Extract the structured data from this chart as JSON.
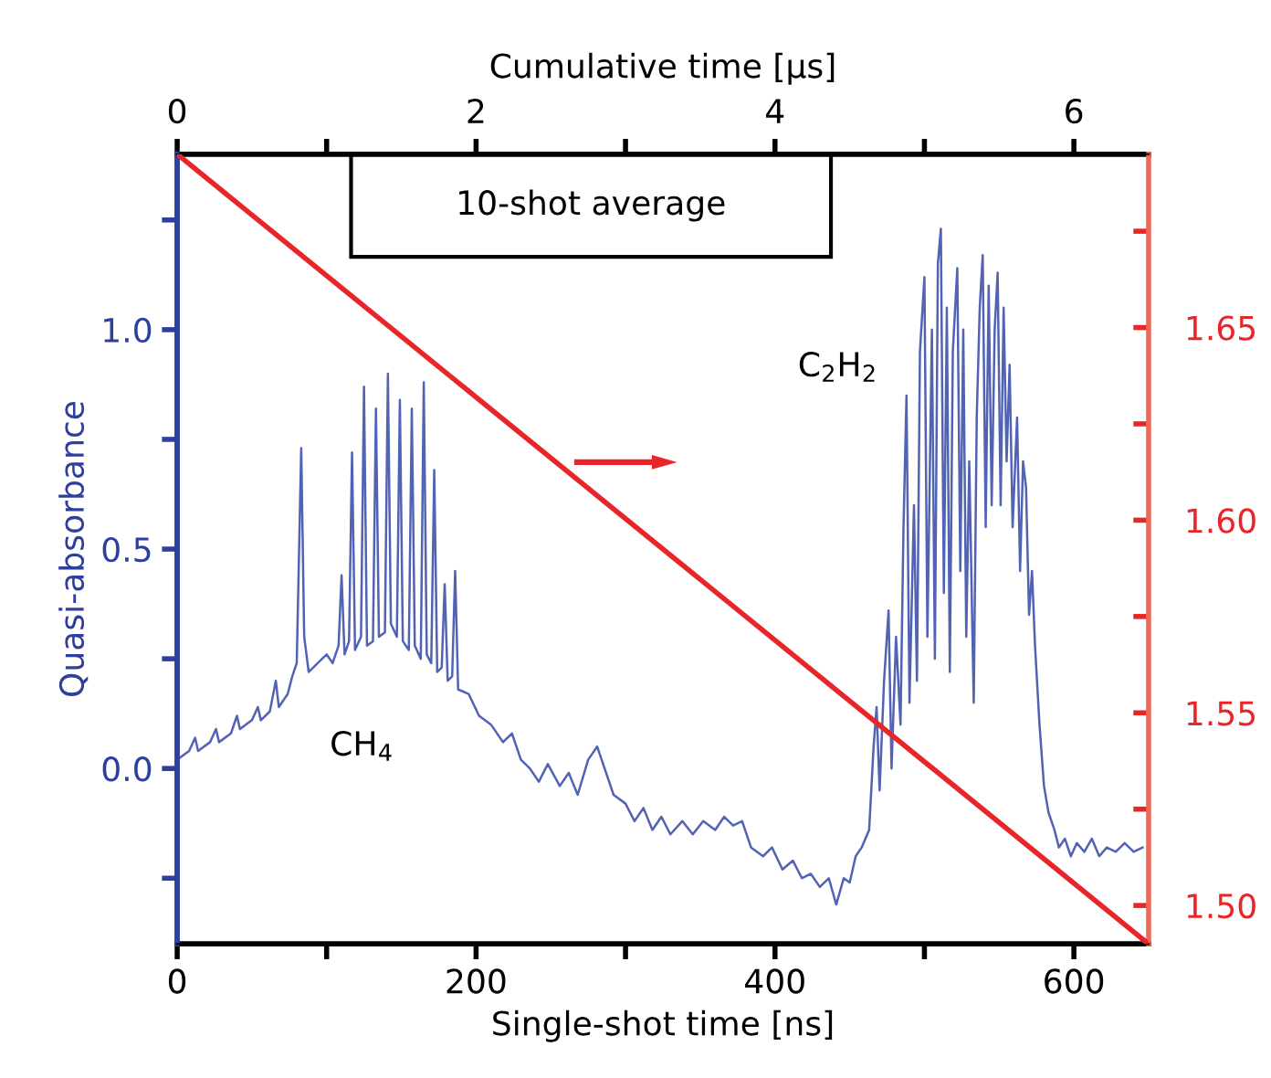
{
  "chart_data": {
    "type": "line",
    "xlabel": "Single-shot time [ns]",
    "x2label": "Cumulative time [µs]",
    "ylabel": "Quasi-absorbance",
    "xlim": [
      0,
      650
    ],
    "xticks": [
      0,
      {
        "value": 100,
        "label": null
      },
      200,
      {
        "value": 300,
        "label": null
      },
      400,
      {
        "value": 500,
        "label": null
      },
      600
    ],
    "x2lim": [
      0,
      6.5
    ],
    "x2ticks": [
      0,
      {
        "value": 1,
        "label": null
      },
      2,
      {
        "value": 3,
        "label": null
      },
      4,
      {
        "value": 5,
        "label": null
      },
      6
    ],
    "ylim": [
      -0.4,
      1.4
    ],
    "yticks": [
      {
        "value": -0.25,
        "label": null
      },
      {
        "value": 0,
        "label": "0.0"
      },
      {
        "value": 0.25,
        "label": null
      },
      {
        "value": 0.5,
        "label": "0.5"
      },
      {
        "value": 0.75,
        "label": null
      },
      {
        "value": 1.0,
        "label": "1.0"
      },
      {
        "value": 1.25,
        "label": null
      }
    ],
    "y2lim": [
      1.49,
      1.695
    ],
    "y2ticks": [
      {
        "value": 1.5,
        "label": "1.50"
      },
      {
        "value": 1.525,
        "label": null
      },
      {
        "value": 1.55,
        "label": "1.55"
      },
      {
        "value": 1.575,
        "label": null
      },
      {
        "value": 1.6,
        "label": "1.60"
      },
      {
        "value": 1.625,
        "label": null
      },
      {
        "value": 1.65,
        "label": "1.65"
      },
      {
        "value": 1.675,
        "label": null
      }
    ],
    "grid": false,
    "marker": "none",
    "line_style": "solid",
    "annotations": [
      "10-shot average",
      "CH$_{4}$",
      "C$_{2}$H$_{2}$"
    ],
    "series": [
      {
        "color": "#5263b3",
        "axis": "y",
        "x": [
          0,
          8,
          12,
          14,
          22,
          26,
          28,
          36,
          40,
          42,
          50,
          54,
          56,
          62,
          66,
          68,
          74,
          77,
          80,
          83,
          85,
          88,
          94,
          100,
          104,
          108,
          110,
          112,
          115,
          117,
          119,
          123,
          125,
          127,
          131,
          133,
          135,
          139,
          141,
          143,
          147,
          149,
          151,
          155,
          157,
          159,
          163,
          165,
          167,
          170,
          172,
          174,
          177,
          179,
          181,
          184,
          186,
          188,
          195,
          202,
          210,
          218,
          224,
          230,
          236,
          242,
          248,
          256,
          262,
          268,
          275,
          281,
          286,
          292,
          300,
          306,
          312,
          318,
          324,
          330,
          338,
          345,
          352,
          360,
          366,
          372,
          378,
          384,
          392,
          398,
          405,
          412,
          418,
          424,
          430,
          436,
          441,
          446,
          450,
          454,
          458,
          463,
          466,
          468,
          470,
          473,
          476,
          478,
          481,
          484,
          486,
          488,
          490,
          493,
          495,
          497,
          500,
          502,
          505,
          507,
          509,
          511,
          513,
          515,
          517,
          519,
          522,
          524,
          526,
          528,
          530,
          533,
          535,
          537,
          539,
          541,
          543,
          545,
          547,
          549,
          551,
          553,
          555,
          557,
          559,
          562,
          564,
          566,
          568,
          570,
          572,
          574,
          577,
          580,
          583,
          587,
          590,
          594,
          598,
          602,
          607,
          612,
          617,
          622,
          628,
          634,
          640,
          646
        ],
        "values": [
          0.02,
          0.04,
          0.07,
          0.04,
          0.06,
          0.09,
          0.06,
          0.08,
          0.12,
          0.09,
          0.11,
          0.14,
          0.11,
          0.13,
          0.2,
          0.14,
          0.17,
          0.21,
          0.24,
          0.73,
          0.3,
          0.22,
          0.24,
          0.26,
          0.24,
          0.28,
          0.44,
          0.26,
          0.29,
          0.72,
          0.27,
          0.3,
          0.87,
          0.28,
          0.29,
          0.82,
          0.3,
          0.31,
          0.9,
          0.33,
          0.3,
          0.84,
          0.29,
          0.27,
          0.82,
          0.28,
          0.25,
          0.88,
          0.26,
          0.24,
          0.68,
          0.22,
          0.23,
          0.42,
          0.2,
          0.21,
          0.45,
          0.18,
          0.17,
          0.12,
          0.1,
          0.06,
          0.08,
          0.02,
          0.0,
          -0.03,
          0.01,
          -0.04,
          -0.01,
          -0.06,
          0.02,
          0.05,
          0.0,
          -0.06,
          -0.08,
          -0.12,
          -0.09,
          -0.14,
          -0.11,
          -0.15,
          -0.12,
          -0.15,
          -0.12,
          -0.14,
          -0.11,
          -0.13,
          -0.12,
          -0.18,
          -0.2,
          -0.18,
          -0.23,
          -0.21,
          -0.25,
          -0.24,
          -0.27,
          -0.25,
          -0.31,
          -0.25,
          -0.26,
          -0.2,
          -0.18,
          -0.14,
          0.05,
          0.14,
          -0.05,
          0.2,
          0.36,
          0.0,
          0.3,
          0.1,
          0.55,
          0.85,
          0.15,
          0.6,
          0.2,
          0.95,
          1.12,
          0.3,
          1.0,
          0.25,
          1.15,
          1.23,
          0.4,
          1.05,
          0.22,
          0.95,
          1.14,
          0.45,
          1.0,
          0.3,
          0.7,
          0.15,
          0.8,
          1.05,
          1.17,
          0.55,
          1.1,
          0.6,
          1.0,
          1.13,
          0.6,
          1.05,
          0.7,
          0.92,
          0.55,
          0.8,
          0.45,
          0.7,
          0.64,
          0.35,
          0.45,
          0.28,
          0.1,
          -0.04,
          -0.1,
          -0.14,
          -0.18,
          -0.16,
          -0.2,
          -0.17,
          -0.19,
          -0.16,
          -0.2,
          -0.18,
          -0.19,
          -0.17,
          -0.19,
          -0.18
        ]
      },
      {
        "type": "line",
        "axis": "y2",
        "color": "#e8262a",
        "x": [
          0,
          650
        ],
        "values": [
          1.695,
          1.49
        ]
      }
    ]
  }
}
